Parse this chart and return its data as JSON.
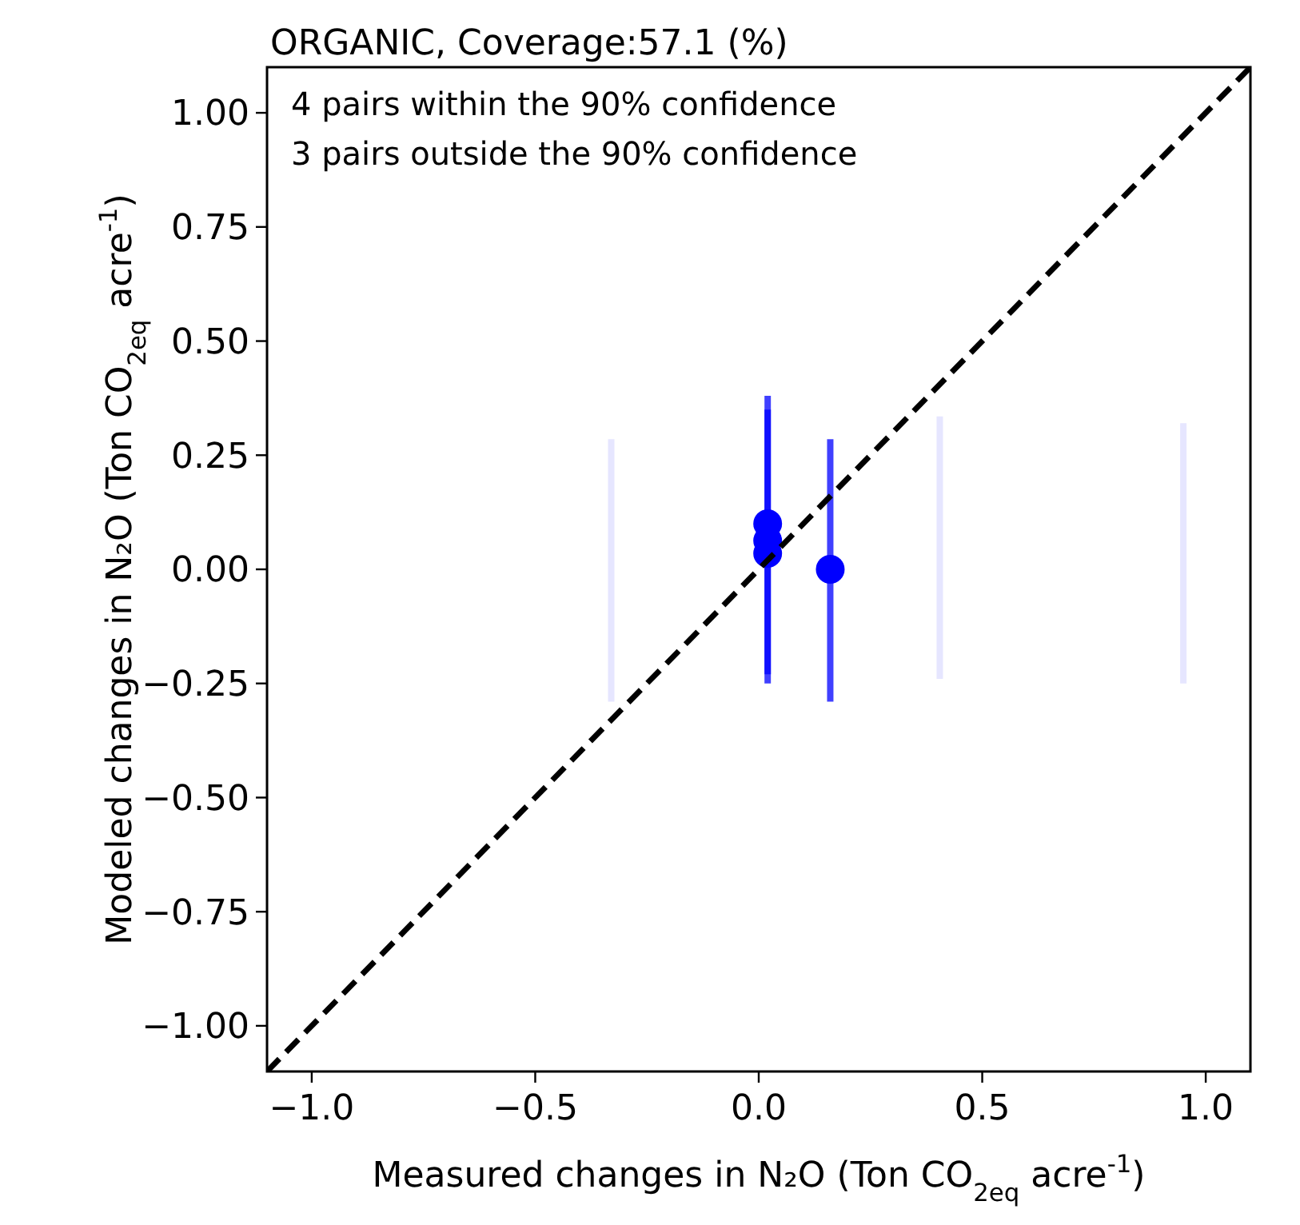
{
  "chart_data": {
    "type": "scatter",
    "title": "ORGANIC,  Coverage:57.1 (%)",
    "xlabel": "Measured changes in N₂O (Ton CO$_{2eq}$ acre$^{-1}$)",
    "ylabel": "Modeled changes in N₂O (Ton CO$_{2eq}$ acre$^{-1}$)",
    "annotations": [
      "4  pairs within the 90% confidence",
      "3  pairs outside the 90% confidence"
    ],
    "series": [
      {
        "type": "line",
        "color": "#e6e6ff",
        "marker": "none",
        "x": [
          -0.33,
          -0.33
        ],
        "values": [
          -0.29,
          0.285
        ]
      },
      {
        "type": "line",
        "color": "#e6e6ff",
        "marker": "none",
        "x": [
          0.405,
          0.405
        ],
        "values": [
          -0.24,
          0.335
        ]
      },
      {
        "type": "line",
        "color": "#e6e6ff",
        "marker": "none",
        "x": [
          0.95,
          0.95
        ],
        "values": [
          -0.25,
          0.32
        ]
      },
      {
        "color": "#0000ff",
        "marker": "circle",
        "x": [
          0.02,
          0.02,
          0.02,
          0.16
        ],
        "values": [
          0.1,
          0.063,
          0.035,
          0.0
        ],
        "errors": [
          [
            -0.25,
            0.38
          ],
          [
            -0.23,
            0.35
          ],
          null,
          [
            -0.29,
            0.285
          ]
        ]
      },
      {
        "type": "line",
        "color": "#000000",
        "line_style": "dashed",
        "marker": "none",
        "x": [
          -1.1,
          1.1
        ],
        "values": [
          -1.1,
          1.1
        ]
      }
    ],
    "xlim": [
      -1.1,
      1.1
    ],
    "ylim": [
      -1.1,
      1.1
    ],
    "xticks": [
      {
        "value": -1,
        "label": "−1.0"
      },
      {
        "value": -0.5,
        "label": "−0.5"
      },
      {
        "value": 0,
        "label": "0.0"
      },
      {
        "value": 0.5,
        "label": "0.5"
      },
      {
        "value": 1,
        "label": "1.0"
      }
    ],
    "yticks": [
      {
        "value": -1,
        "label": "−1.00"
      },
      {
        "value": -0.75,
        "label": "−0.75"
      },
      {
        "value": -0.5,
        "label": "−0.50"
      },
      {
        "value": -0.25,
        "label": "−0.25"
      },
      {
        "value": 0,
        "label": "0.00"
      },
      {
        "value": 0.25,
        "label": "0.25"
      },
      {
        "value": 0.5,
        "label": "0.50"
      },
      {
        "value": 0.75,
        "label": "0.75"
      },
      {
        "value": 1,
        "label": "1.00"
      }
    ]
  }
}
